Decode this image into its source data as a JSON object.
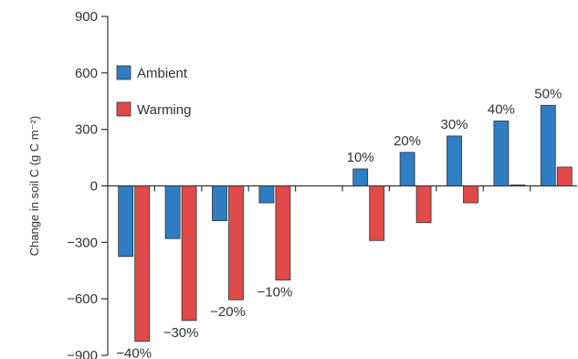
{
  "chart_data": {
    "type": "bar",
    "title": "",
    "xlabel": "",
    "ylabel": "Change in soil C (g C m⁻²)",
    "ylim": [
      -900,
      900
    ],
    "yticks": [
      900,
      600,
      300,
      0,
      -300,
      -600,
      -900
    ],
    "categories": [
      "−40%",
      "−30%",
      "−20%",
      "−10%",
      "",
      "10%",
      "20%",
      "30%",
      "40%",
      "50%"
    ],
    "series": [
      {
        "name": "Ambient",
        "color": "#2f7dc3",
        "values": [
          -375,
          -280,
          -185,
          -90,
          null,
          90,
          178,
          265,
          345,
          428
        ]
      },
      {
        "name": "Warming",
        "color": "#e04a4a",
        "values": [
          -825,
          -715,
          -605,
          -500,
          null,
          -290,
          -195,
          -90,
          5,
          100
        ]
      }
    ],
    "legend": {
      "placement": "top-left"
    },
    "grid": false
  }
}
